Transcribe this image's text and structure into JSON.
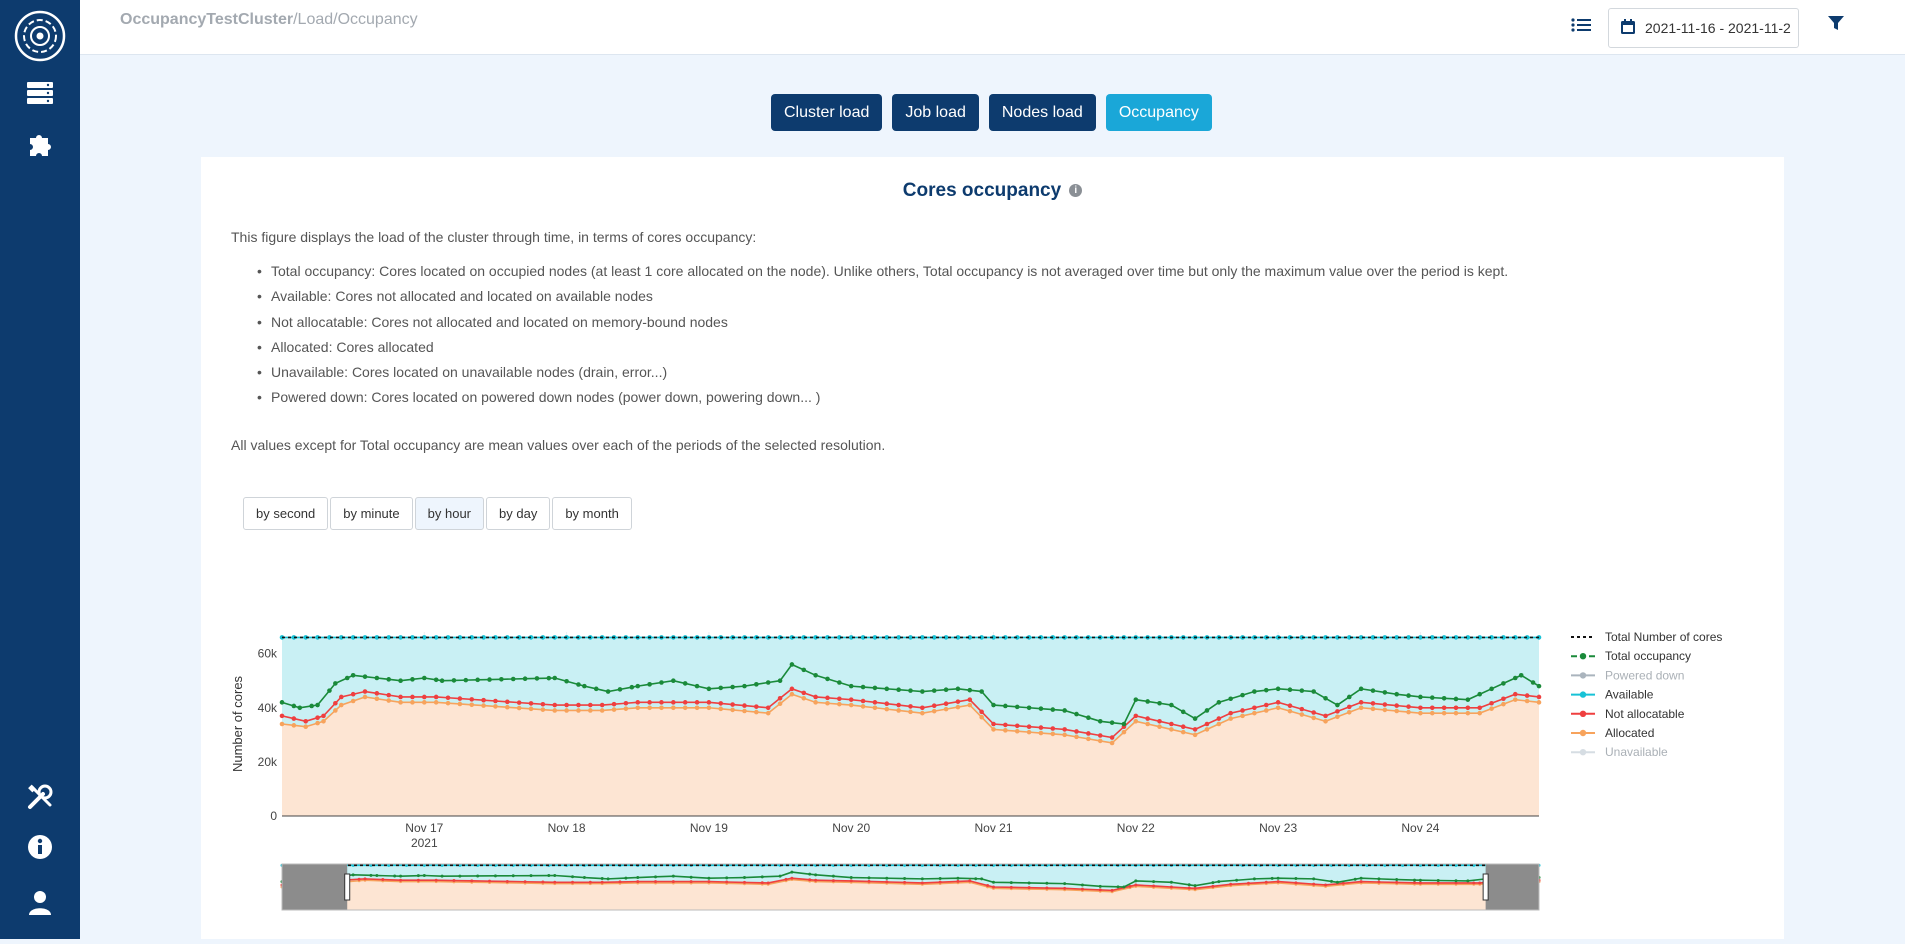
{
  "breadcrumb": {
    "cluster": "OccupancyTestCluster",
    "path": "/Load/Occupancy"
  },
  "toolbar": {
    "date_range": "2021-11-16 - 2021-11-2"
  },
  "tabs": [
    {
      "label": "Cluster load",
      "active": false
    },
    {
      "label": "Job load",
      "active": false
    },
    {
      "label": "Nodes load",
      "active": false
    },
    {
      "label": "Occupancy",
      "active": true
    }
  ],
  "card": {
    "title": "Cores occupancy",
    "intro": "This figure displays the load of the cluster through time, in terms of cores occupancy:",
    "bullets": [
      "Total occupancy: Cores located on occupied nodes (at least 1 core allocated on the node). Unlike others, Total occupancy is not averaged over time but only the maximum value over the period is kept.",
      "Available: Cores not allocated and located on available nodes",
      "Not allocatable: Cores not allocated and located on memory-bound nodes",
      "Allocated: Cores allocated",
      "Unavailable: Cores located on unavailable nodes (drain, error...)",
      "Powered down: Cores located on powered down nodes (power down, powering down... )"
    ],
    "note": "All values except for Total occupancy are mean values over each of the periods of the selected resolution.",
    "resolutions": [
      {
        "label": "by second",
        "selected": false
      },
      {
        "label": "by minute",
        "selected": false
      },
      {
        "label": "by hour",
        "selected": true
      },
      {
        "label": "by day",
        "selected": false
      },
      {
        "label": "by month",
        "selected": false
      }
    ]
  },
  "colors": {
    "navy": "#0d3b6e",
    "accent": "#1aa7d8",
    "total_occupancy": "#1a8a3a",
    "available": "#17c2d6",
    "not_allocatable": "#ef3f3f",
    "allocated": "#f7a35c",
    "powered_down": "#aab4bd",
    "unavailable": "#d6dde3",
    "total_cores": "#111111"
  },
  "chart_data": {
    "type": "line",
    "ylabel": "Number of cores",
    "ylim": [
      0,
      68000
    ],
    "yticks": [
      0,
      20000,
      40000,
      60000
    ],
    "ytick_labels": [
      "0",
      "20k",
      "40k",
      "60k"
    ],
    "xlim": [
      "2021-11-16 00:00",
      "2021-11-24 20:00"
    ],
    "xticks": [
      {
        "date": "2021-11-17",
        "label": "Nov 17",
        "sublabel": "2021"
      },
      {
        "date": "2021-11-18",
        "label": "Nov 18"
      },
      {
        "date": "2021-11-19",
        "label": "Nov 19"
      },
      {
        "date": "2021-11-20",
        "label": "Nov 20"
      },
      {
        "date": "2021-11-21",
        "label": "Nov 21"
      },
      {
        "date": "2021-11-22",
        "label": "Nov 22"
      },
      {
        "date": "2021-11-23",
        "label": "Nov 23"
      },
      {
        "date": "2021-11-24",
        "label": "Nov 24"
      }
    ],
    "legend_position": "right",
    "grid": true,
    "range_slider": true,
    "range_slider_selection": [
      "2021-11-16 11:00",
      "2021-11-24 11:00"
    ],
    "series": [
      {
        "name": "Total Number of cores",
        "style": "dotted",
        "color": "#111111",
        "points": [
          [
            "2021-11-16 00:00",
            66000
          ],
          [
            "2021-11-24 20:00",
            66000
          ]
        ]
      },
      {
        "name": "Total occupancy",
        "style": "line-dots",
        "color": "#1a8a3a",
        "points": [
          [
            "2021-11-16 00:00",
            42000
          ],
          [
            "2021-11-16 03:00",
            40000
          ],
          [
            "2021-11-16 06:00",
            41000
          ],
          [
            "2021-11-16 09:00",
            49000
          ],
          [
            "2021-11-16 12:00",
            52000
          ],
          [
            "2021-11-16 16:00",
            51000
          ],
          [
            "2021-11-16 20:00",
            50000
          ],
          [
            "2021-11-17 00:00",
            51000
          ],
          [
            "2021-11-17 03:00",
            50000
          ],
          [
            "2021-11-17 22:00",
            51000
          ],
          [
            "2021-11-18 03:00",
            48000
          ],
          [
            "2021-11-18 07:00",
            46000
          ],
          [
            "2021-11-18 12:00",
            48000
          ],
          [
            "2021-11-18 18:00",
            50000
          ],
          [
            "2021-11-19 00:00",
            47000
          ],
          [
            "2021-11-19 06:00",
            48000
          ],
          [
            "2021-11-19 12:00",
            50000
          ],
          [
            "2021-11-19 14:00",
            56000
          ],
          [
            "2021-11-19 18:00",
            52000
          ],
          [
            "2021-11-20 00:00",
            48000
          ],
          [
            "2021-11-20 06:00",
            47000
          ],
          [
            "2021-11-20 12:00",
            46000
          ],
          [
            "2021-11-20 18:00",
            47000
          ],
          [
            "2021-11-20 22:00",
            46000
          ],
          [
            "2021-11-21 00:00",
            41000
          ],
          [
            "2021-11-21 06:00",
            40000
          ],
          [
            "2021-11-21 12:00",
            39000
          ],
          [
            "2021-11-21 18:00",
            35000
          ],
          [
            "2021-11-21 22:00",
            34000
          ],
          [
            "2021-11-22 00:00",
            43000
          ],
          [
            "2021-11-22 06:00",
            41000
          ],
          [
            "2021-11-22 10:00",
            36000
          ],
          [
            "2021-11-22 14:00",
            42000
          ],
          [
            "2021-11-22 20:00",
            46000
          ],
          [
            "2021-11-23 00:00",
            47000
          ],
          [
            "2021-11-23 06:00",
            46000
          ],
          [
            "2021-11-23 10:00",
            41000
          ],
          [
            "2021-11-23 14:00",
            47000
          ],
          [
            "2021-11-23 20:00",
            45000
          ],
          [
            "2021-11-24 00:00",
            44000
          ],
          [
            "2021-11-24 08:00",
            43000
          ],
          [
            "2021-11-24 12:00",
            47000
          ],
          [
            "2021-11-24 17:00",
            52000
          ],
          [
            "2021-11-24 20:00",
            48000
          ]
        ]
      },
      {
        "name": "Powered down",
        "style": "line-dots",
        "color": "#aab4bd",
        "legend_dim": true,
        "points": []
      },
      {
        "name": "Available",
        "style": "line-dots-fill",
        "color": "#17c2d6",
        "points": [
          [
            "2021-11-16 00:00",
            66000
          ],
          [
            "2021-11-24 20:00",
            66000
          ]
        ]
      },
      {
        "name": "Not allocatable",
        "style": "line-dots",
        "color": "#ef3f3f",
        "points": [
          [
            "2021-11-16 00:00",
            37000
          ],
          [
            "2021-11-16 04:00",
            35000
          ],
          [
            "2021-11-16 07:00",
            37000
          ],
          [
            "2021-11-16 10:00",
            44000
          ],
          [
            "2021-11-16 14:00",
            46000
          ],
          [
            "2021-11-16 20:00",
            44000
          ],
          [
            "2021-11-17 02:00",
            44000
          ],
          [
            "2021-11-17 22:00",
            41000
          ],
          [
            "2021-11-18 06:00",
            41000
          ],
          [
            "2021-11-18 12:00",
            42000
          ],
          [
            "2021-11-19 00:00",
            42000
          ],
          [
            "2021-11-19 10:00",
            40000
          ],
          [
            "2021-11-19 14:00",
            47000
          ],
          [
            "2021-11-19 18:00",
            44000
          ],
          [
            "2021-11-20 00:00",
            43000
          ],
          [
            "2021-11-20 12:00",
            40000
          ],
          [
            "2021-11-20 20:00",
            43000
          ],
          [
            "2021-11-21 00:00",
            34000
          ],
          [
            "2021-11-21 12:00",
            32000
          ],
          [
            "2021-11-21 20:00",
            29000
          ],
          [
            "2021-11-22 00:00",
            37000
          ],
          [
            "2021-11-22 10:00",
            32000
          ],
          [
            "2021-11-22 16:00",
            38000
          ],
          [
            "2021-11-23 00:00",
            42000
          ],
          [
            "2021-11-23 08:00",
            37000
          ],
          [
            "2021-11-23 14:00",
            42000
          ],
          [
            "2021-11-24 00:00",
            40000
          ],
          [
            "2021-11-24 10:00",
            40000
          ],
          [
            "2021-11-24 16:00",
            45000
          ],
          [
            "2021-11-24 20:00",
            44000
          ]
        ]
      },
      {
        "name": "Allocated",
        "style": "line-dots-fill",
        "color": "#f7a35c",
        "points": [
          [
            "2021-11-16 00:00",
            34000
          ],
          [
            "2021-11-16 04:00",
            33000
          ],
          [
            "2021-11-16 07:00",
            35000
          ],
          [
            "2021-11-16 10:00",
            41000
          ],
          [
            "2021-11-16 14:00",
            44000
          ],
          [
            "2021-11-16 20:00",
            42000
          ],
          [
            "2021-11-17 02:00",
            42000
          ],
          [
            "2021-11-17 22:00",
            39000
          ],
          [
            "2021-11-18 06:00",
            39000
          ],
          [
            "2021-11-18 12:00",
            40000
          ],
          [
            "2021-11-19 00:00",
            40000
          ],
          [
            "2021-11-19 10:00",
            38000
          ],
          [
            "2021-11-19 14:00",
            45000
          ],
          [
            "2021-11-19 18:00",
            42000
          ],
          [
            "2021-11-20 00:00",
            41000
          ],
          [
            "2021-11-20 12:00",
            38000
          ],
          [
            "2021-11-20 20:00",
            41000
          ],
          [
            "2021-11-21 00:00",
            32000
          ],
          [
            "2021-11-21 12:00",
            30000
          ],
          [
            "2021-11-21 20:00",
            27000
          ],
          [
            "2021-11-22 00:00",
            35000
          ],
          [
            "2021-11-22 10:00",
            30000
          ],
          [
            "2021-11-22 16:00",
            36000
          ],
          [
            "2021-11-23 00:00",
            40000
          ],
          [
            "2021-11-23 08:00",
            35000
          ],
          [
            "2021-11-23 14:00",
            40000
          ],
          [
            "2021-11-24 00:00",
            38000
          ],
          [
            "2021-11-24 10:00",
            38000
          ],
          [
            "2021-11-24 16:00",
            43000
          ],
          [
            "2021-11-24 20:00",
            42000
          ]
        ]
      },
      {
        "name": "Unavailable",
        "style": "line-dots",
        "color": "#d6dde3",
        "legend_dim": true,
        "points": []
      }
    ]
  }
}
